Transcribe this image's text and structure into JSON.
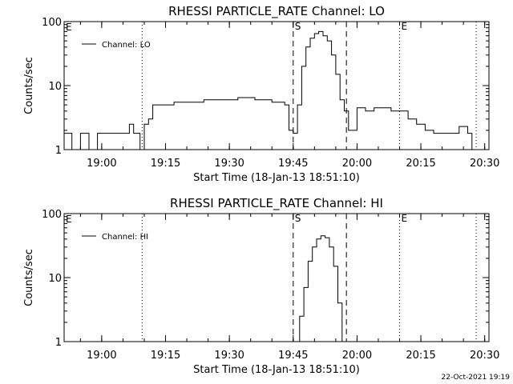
{
  "footer_timestamp": "22-Oct-2021 19:19",
  "chart_data": [
    {
      "type": "line",
      "title": "RHESSI PARTICLE_RATE Channel: LO",
      "xlabel": "Start Time (18-Jan-13 18:51:10)",
      "ylabel": "Counts/sec",
      "yscale": "log",
      "ylim": [
        1,
        100
      ],
      "y_ticks": [
        "1",
        "10",
        "100"
      ],
      "xlim": [
        "18:51:10",
        "20:31:00"
      ],
      "x_ticks": [
        "19:00",
        "19:15",
        "19:30",
        "19:45",
        "20:00",
        "20:15",
        "20:30"
      ],
      "legend": "top-left",
      "series": [
        {
          "name": "Channel: LO",
          "x": [
            "18:51:10",
            "18:53:00",
            "18:55:00",
            "18:57:00",
            "18:59:00",
            "19:01:00",
            "19:03:00",
            "19:05:00",
            "19:06:30",
            "19:07:30",
            "19:09:00",
            "19:10:00",
            "19:11:00",
            "19:12:00",
            "19:14:00",
            "19:17:00",
            "19:20:00",
            "19:24:00",
            "19:28:00",
            "19:32:00",
            "19:36:00",
            "19:40:00",
            "19:42:00",
            "19:43:00",
            "19:44:00",
            "19:45:00",
            "19:46:00",
            "19:47:00",
            "19:48:00",
            "19:49:00",
            "19:50:00",
            "19:51:00",
            "19:52:00",
            "19:53:00",
            "19:54:00",
            "19:55:00",
            "19:56:00",
            "19:57:00",
            "19:58:00",
            "19:59:00",
            "20:00:00",
            "20:02:00",
            "20:04:00",
            "20:06:00",
            "20:08:00",
            "20:10:00",
            "20:12:00",
            "20:14:00",
            "20:16:00",
            "20:18:00",
            "20:20:00",
            "20:22:00",
            "20:24:00",
            "20:26:00",
            "20:27:00"
          ],
          "values": [
            1.8,
            1,
            1.8,
            1,
            1.8,
            1.8,
            1.8,
            1.8,
            2.5,
            1.8,
            1,
            2.5,
            3,
            5,
            5,
            5.5,
            5.5,
            6,
            6,
            6.5,
            6,
            5.5,
            5.5,
            5,
            2,
            1.8,
            5,
            20,
            40,
            55,
            65,
            70,
            60,
            50,
            30,
            15,
            6,
            4,
            2,
            2,
            4.5,
            4,
            4.5,
            4.5,
            4,
            4,
            3,
            2.5,
            2,
            1.8,
            1.8,
            1.8,
            2.3,
            1.8,
            1
          ]
        }
      ],
      "markers": [
        {
          "label": "S",
          "time": "19:45:00",
          "style": "dashed"
        },
        {
          "time": "19:57:30",
          "style": "dashed"
        },
        {
          "time": "19:09:30",
          "style": "dotted"
        },
        {
          "label": "E",
          "time": "20:10:00",
          "style": "dotted"
        },
        {
          "time": "20:28:00",
          "style": "dotted"
        }
      ],
      "corner_label": "E"
    },
    {
      "type": "line",
      "title": "RHESSI PARTICLE_RATE Channel: HI",
      "xlabel": "Start Time (18-Jan-13 18:51:10)",
      "ylabel": "Counts/sec",
      "yscale": "log",
      "ylim": [
        1,
        100
      ],
      "y_ticks": [
        "1",
        "10",
        "100"
      ],
      "xlim": [
        "18:51:10",
        "20:31:00"
      ],
      "x_ticks": [
        "19:00",
        "19:15",
        "19:30",
        "19:45",
        "20:00",
        "20:15",
        "20:30"
      ],
      "legend": "top-left",
      "series": [
        {
          "name": "Channel: HI",
          "x": [
            "19:45:30",
            "19:46:30",
            "19:47:30",
            "19:48:30",
            "19:49:30",
            "19:50:30",
            "19:51:30",
            "19:52:30",
            "19:53:30",
            "19:54:30",
            "19:55:30",
            "19:56:30"
          ],
          "values": [
            1,
            2.5,
            7,
            18,
            30,
            40,
            45,
            42,
            30,
            15,
            4,
            1
          ]
        }
      ],
      "markers": [
        {
          "label": "S",
          "time": "19:45:00",
          "style": "dashed"
        },
        {
          "time": "19:57:30",
          "style": "dashed"
        },
        {
          "time": "19:09:30",
          "style": "dotted"
        },
        {
          "label": "E",
          "time": "20:10:00",
          "style": "dotted"
        },
        {
          "time": "20:28:00",
          "style": "dotted"
        }
      ],
      "corner_label": "E"
    }
  ]
}
